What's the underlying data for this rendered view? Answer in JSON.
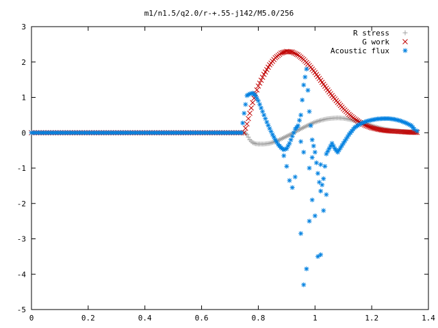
{
  "chart_data": {
    "type": "scatter",
    "title": "m1/n1.5/q2.0/r-+.55-j142/M5.0/256",
    "xlabel": "",
    "ylabel": "",
    "xlim": [
      0,
      1.4
    ],
    "ylim": [
      -5,
      3
    ],
    "xticks": [
      "0",
      "0.2",
      "0.4",
      "0.6",
      "0.8",
      "1",
      "1.2",
      "1.4"
    ],
    "yticks": [
      "3",
      "2",
      "1",
      "0",
      "-1",
      "-2",
      "-3",
      "-4",
      "-5"
    ],
    "grid": false,
    "legend_position": "top-right",
    "series": [
      {
        "name": "R stress",
        "marker": "+",
        "color": "#a0a0a0",
        "points": [
          [
            0.0,
            0.0
          ],
          [
            0.75,
            0.0
          ],
          [
            0.76,
            -0.05
          ],
          [
            0.77,
            -0.2
          ],
          [
            0.78,
            -0.28
          ],
          [
            0.79,
            -0.31
          ],
          [
            0.8,
            -0.32
          ],
          [
            0.82,
            -0.32
          ],
          [
            0.84,
            -0.3
          ],
          [
            0.86,
            -0.25
          ],
          [
            0.88,
            -0.18
          ],
          [
            0.9,
            -0.1
          ],
          [
            0.92,
            -0.02
          ],
          [
            0.94,
            0.07
          ],
          [
            0.96,
            0.15
          ],
          [
            0.98,
            0.23
          ],
          [
            1.0,
            0.3
          ],
          [
            1.02,
            0.35
          ],
          [
            1.04,
            0.39
          ],
          [
            1.06,
            0.41
          ],
          [
            1.08,
            0.42
          ],
          [
            1.1,
            0.41
          ],
          [
            1.12,
            0.38
          ],
          [
            1.14,
            0.34
          ],
          [
            1.16,
            0.3
          ],
          [
            1.18,
            0.25
          ],
          [
            1.2,
            0.2
          ],
          [
            1.22,
            0.15
          ],
          [
            1.24,
            0.11
          ],
          [
            1.26,
            0.08
          ],
          [
            1.28,
            0.06
          ],
          [
            1.3,
            0.04
          ],
          [
            1.32,
            0.03
          ],
          [
            1.34,
            0.02
          ],
          [
            1.36,
            0.01
          ]
        ]
      },
      {
        "name": "G work",
        "marker": "x",
        "color": "#c00000",
        "points": [
          [
            0.0,
            0.0
          ],
          [
            0.75,
            0.0
          ],
          [
            0.76,
            0.25
          ],
          [
            0.77,
            0.55
          ],
          [
            0.78,
            0.85
          ],
          [
            0.79,
            1.1
          ],
          [
            0.8,
            1.32
          ],
          [
            0.82,
            1.65
          ],
          [
            0.84,
            1.92
          ],
          [
            0.86,
            2.12
          ],
          [
            0.88,
            2.25
          ],
          [
            0.9,
            2.3
          ],
          [
            0.92,
            2.28
          ],
          [
            0.94,
            2.2
          ],
          [
            0.96,
            2.07
          ],
          [
            0.98,
            1.9
          ],
          [
            1.0,
            1.7
          ],
          [
            1.02,
            1.48
          ],
          [
            1.04,
            1.26
          ],
          [
            1.06,
            1.05
          ],
          [
            1.08,
            0.86
          ],
          [
            1.1,
            0.68
          ],
          [
            1.12,
            0.52
          ],
          [
            1.14,
            0.39
          ],
          [
            1.16,
            0.28
          ],
          [
            1.18,
            0.2
          ],
          [
            1.2,
            0.14
          ],
          [
            1.22,
            0.1
          ],
          [
            1.24,
            0.07
          ],
          [
            1.26,
            0.05
          ],
          [
            1.28,
            0.04
          ],
          [
            1.3,
            0.03
          ],
          [
            1.32,
            0.02
          ],
          [
            1.34,
            0.01
          ],
          [
            1.36,
            0.01
          ]
        ]
      },
      {
        "name": "Acoustic flux",
        "marker": "*",
        "color": "#0080e0",
        "points": [
          [
            0.0,
            0.0
          ],
          [
            0.74,
            0.0
          ],
          [
            0.75,
            0.55
          ],
          [
            0.76,
            1.05
          ],
          [
            0.77,
            1.1
          ],
          [
            0.78,
            1.12
          ],
          [
            0.79,
            1.05
          ],
          [
            0.8,
            0.9
          ],
          [
            0.81,
            0.7
          ],
          [
            0.82,
            0.5
          ],
          [
            0.83,
            0.3
          ],
          [
            0.84,
            0.12
          ],
          [
            0.85,
            -0.05
          ],
          [
            0.86,
            -0.2
          ],
          [
            0.87,
            -0.33
          ],
          [
            0.88,
            -0.42
          ],
          [
            0.89,
            -0.48
          ],
          [
            0.9,
            -0.45
          ],
          [
            0.91,
            -0.3
          ],
          [
            0.92,
            -0.1
          ],
          [
            0.93,
            0.1
          ],
          [
            0.94,
            0.2
          ],
          [
            0.95,
            0.5
          ],
          [
            0.96,
            1.35
          ],
          [
            0.97,
            1.8
          ],
          [
            0.98,
            0.6
          ],
          [
            0.99,
            -0.2
          ],
          [
            1.0,
            -0.55
          ],
          [
            1.01,
            -1.15
          ],
          [
            1.02,
            -1.65
          ],
          [
            1.03,
            -1.3
          ],
          [
            1.04,
            -0.6
          ],
          [
            1.05,
            -0.45
          ],
          [
            1.06,
            -0.3
          ],
          [
            1.07,
            -0.45
          ],
          [
            1.08,
            -0.55
          ],
          [
            1.1,
            -0.3
          ],
          [
            1.12,
            -0.05
          ],
          [
            1.14,
            0.15
          ],
          [
            1.16,
            0.25
          ],
          [
            1.18,
            0.32
          ],
          [
            1.2,
            0.36
          ],
          [
            1.22,
            0.39
          ],
          [
            1.24,
            0.4
          ],
          [
            1.26,
            0.4
          ],
          [
            1.28,
            0.38
          ],
          [
            1.3,
            0.34
          ],
          [
            1.32,
            0.28
          ],
          [
            1.34,
            0.2
          ],
          [
            1.35,
            0.1
          ],
          [
            1.36,
            0.05
          ],
          [
            0.89,
            -0.65
          ],
          [
            0.9,
            -0.95
          ],
          [
            0.91,
            -1.35
          ],
          [
            0.92,
            -1.55
          ],
          [
            0.93,
            -1.25
          ],
          [
            0.95,
            -2.85
          ],
          [
            0.96,
            -4.3
          ],
          [
            0.97,
            -3.85
          ],
          [
            0.98,
            -2.5
          ],
          [
            0.99,
            -1.9
          ],
          [
            1.0,
            -2.35
          ],
          [
            1.01,
            -3.5
          ],
          [
            1.02,
            -3.45
          ],
          [
            1.03,
            -2.2
          ],
          [
            1.04,
            -1.75
          ],
          [
            0.95,
            -0.25
          ],
          [
            0.96,
            -0.55
          ],
          [
            0.98,
            -1.0
          ],
          [
            0.99,
            -0.7
          ],
          [
            1.02,
            -0.9
          ]
        ]
      }
    ]
  }
}
